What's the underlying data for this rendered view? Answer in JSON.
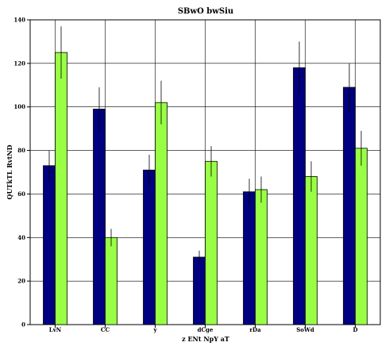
{
  "chart_data": {
    "type": "bar",
    "title": "SBwO bwSiu",
    "xlabel": "z ENt  NpY aT",
    "ylabel": "QUTkTL RvtND",
    "categories": [
      "LvN",
      "CC",
      "y",
      "dCge",
      "rDa",
      "SoWd",
      "D"
    ],
    "ylim": [
      0,
      140
    ],
    "yticks": [
      0,
      20,
      40,
      60,
      80,
      100,
      120,
      140
    ],
    "grid": true,
    "series": [
      {
        "color": "#000080",
        "values": [
          73,
          99,
          71,
          31,
          61,
          118,
          109
        ],
        "errors": [
          7,
          10,
          7,
          3,
          6,
          12,
          11
        ]
      },
      {
        "color": "#99ff44",
        "values": [
          125,
          40,
          102,
          75,
          62,
          68,
          81
        ],
        "errors": [
          12,
          4,
          10,
          7,
          6,
          7,
          8
        ]
      }
    ]
  }
}
